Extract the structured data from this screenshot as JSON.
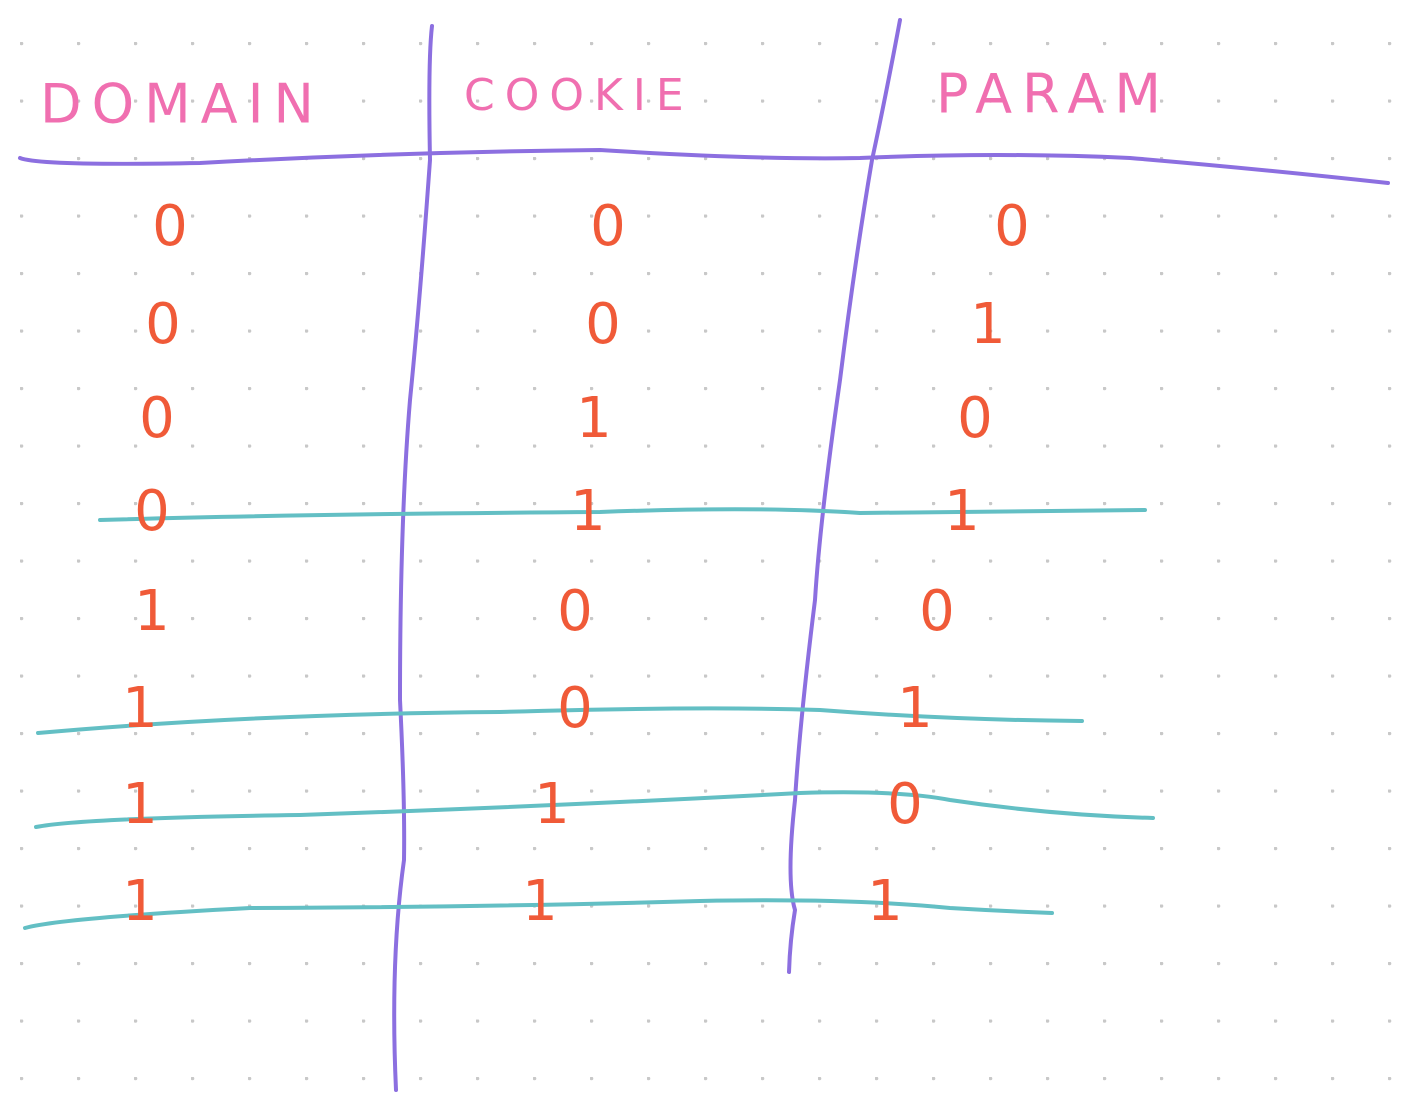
{
  "table": {
    "headers": [
      "DOMAIN",
      "COOKIE",
      "PARAM"
    ],
    "rows": [
      [
        "0",
        "0",
        "0"
      ],
      [
        "0",
        "0",
        "1"
      ],
      [
        "0",
        "1",
        "0"
      ],
      [
        "0",
        "1",
        "1"
      ],
      [
        "1",
        "0",
        "0"
      ],
      [
        "1",
        "0",
        "1"
      ],
      [
        "1",
        "1",
        "0"
      ],
      [
        "1",
        "1",
        "1"
      ]
    ]
  }
}
